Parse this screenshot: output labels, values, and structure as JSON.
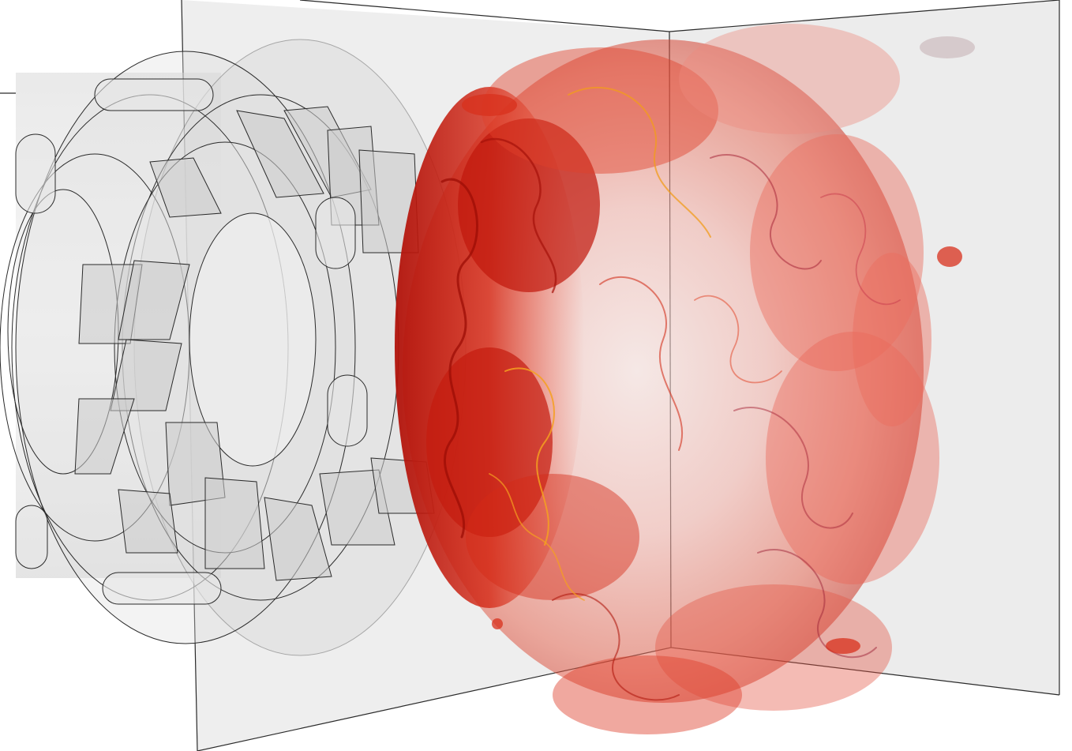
{
  "image": {
    "subject": "simulation-render",
    "colors": {
      "background": "#ffffff",
      "domain_wall": "#ececec",
      "hardware_fill": "#d9d9d9",
      "outline": "#2a2a2a",
      "flame_dark": "#b3120a",
      "flame_mid": "#e0341c",
      "flame_light": "#f27a6a",
      "flame_highlight": "#f5a020"
    }
  }
}
